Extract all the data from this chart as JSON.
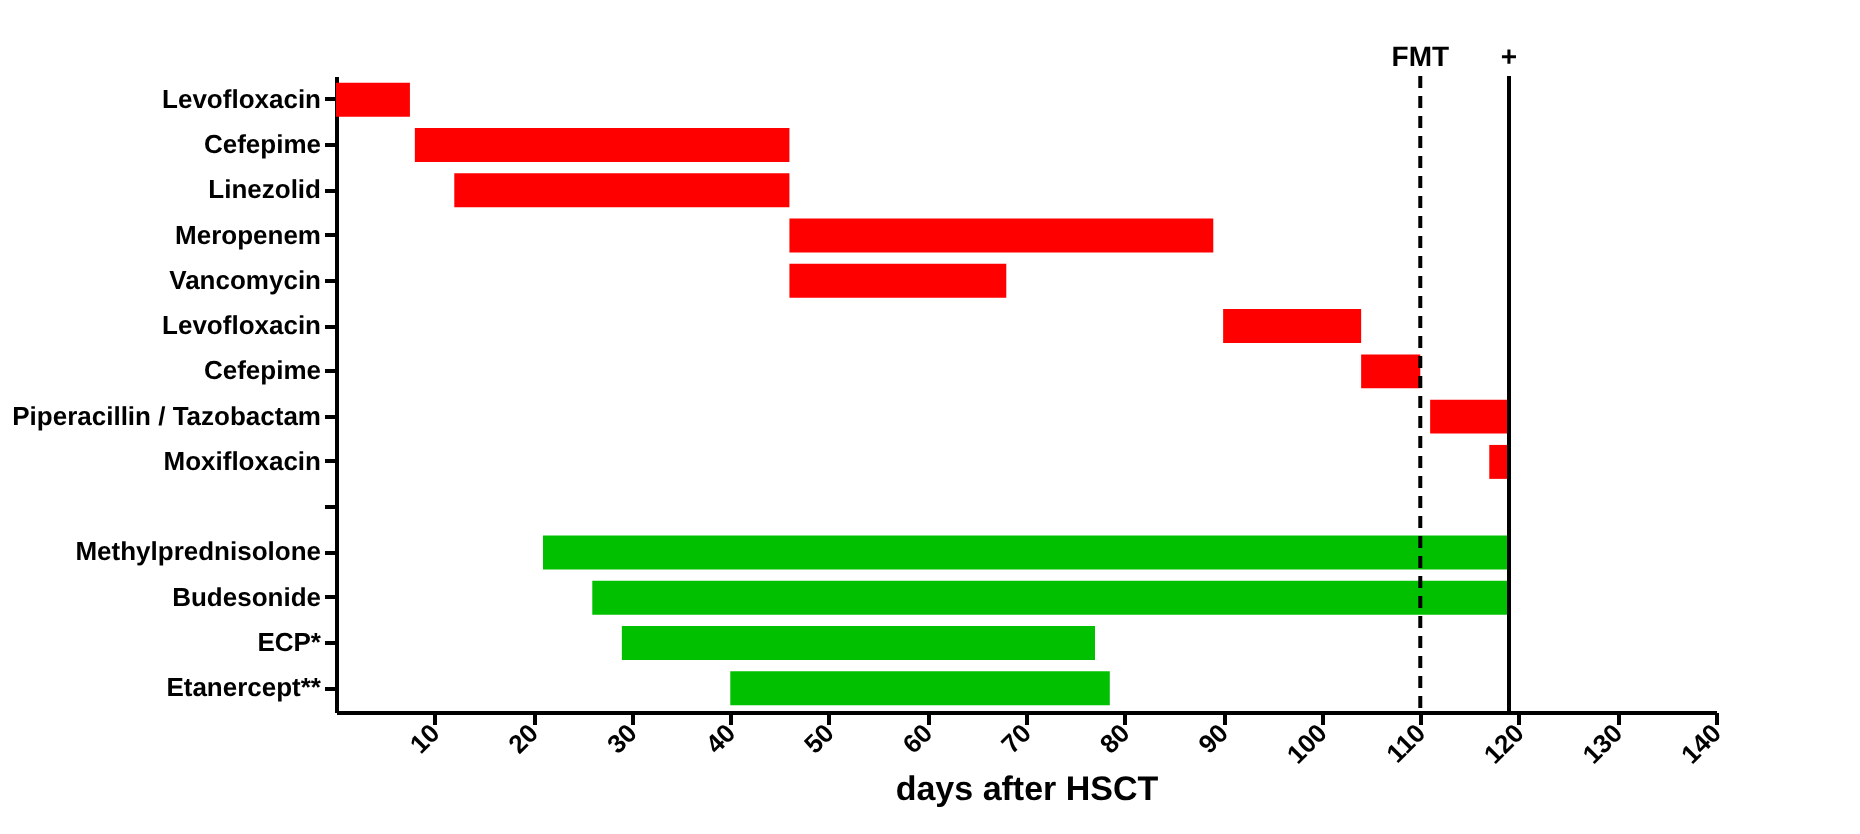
{
  "chart_data": {
    "type": "bar",
    "orientation": "horizontal",
    "xlabel": "days after HSCT",
    "categories": [
      "Levofloxacin",
      "Cefepime",
      "Linezolid",
      "Meropenem",
      "Vancomycin",
      "Levofloxacin",
      "Cefepime",
      "Piperacillin / Tazobactam",
      "Moxifloxacin",
      null,
      "Methylprednisolone",
      "Budesonide",
      "ECP*",
      "Etanercept**"
    ],
    "base": [
      0,
      8,
      12,
      46,
      46,
      90,
      104,
      111,
      117,
      null,
      21,
      26,
      29,
      40
    ],
    "values": [
      7.5,
      38,
      34,
      43,
      22,
      14,
      6,
      8,
      2,
      null,
      98,
      93,
      48,
      38.5
    ],
    "colors": [
      "#ff0000",
      "#ff0000",
      "#ff0000",
      "#ff0000",
      "#ff0000",
      "#ff0000",
      "#ff0000",
      "#ff0000",
      "#ff0000",
      null,
      "#00c000",
      "#00c000",
      "#00c000",
      "#00c000"
    ],
    "xlim": [
      0,
      140
    ],
    "xticks": [
      10,
      20,
      30,
      40,
      50,
      60,
      70,
      80,
      90,
      100,
      110,
      120,
      130,
      140
    ],
    "ref_lines": [
      {
        "axis": "x",
        "value": 110,
        "label": "FMT",
        "line_style": "dashed",
        "color": "#000000"
      },
      {
        "axis": "x",
        "value": 119,
        "label": "+",
        "line_style": "solid",
        "color": "#000000"
      }
    ],
    "grid": false
  }
}
